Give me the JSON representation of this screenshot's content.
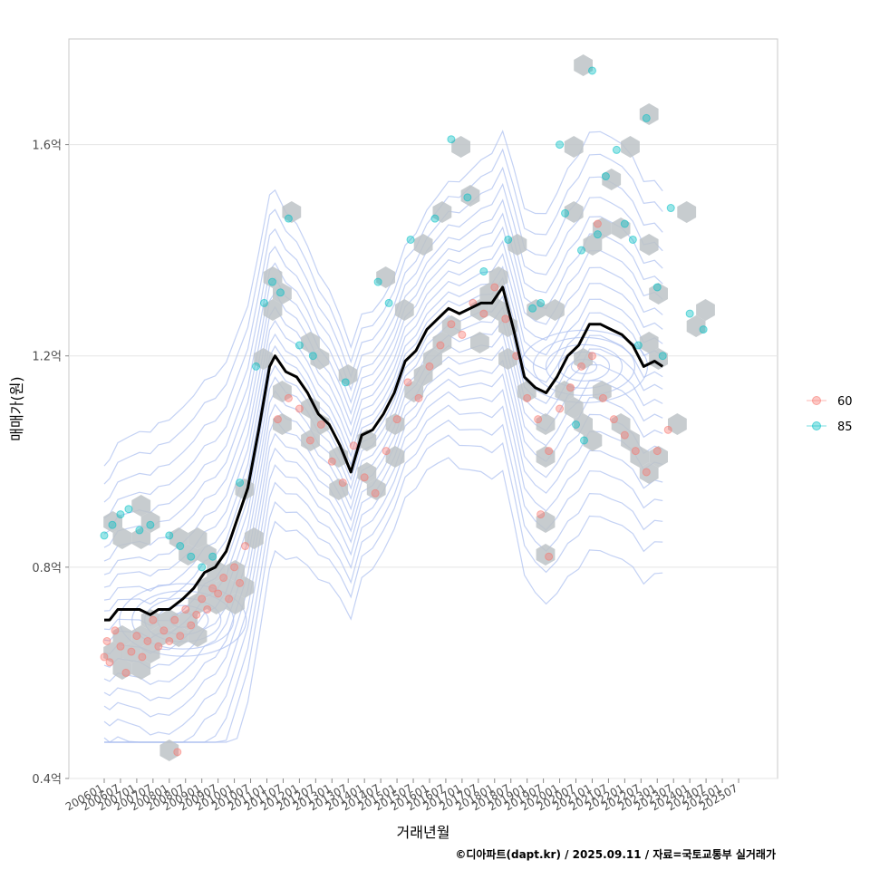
{
  "chart_data": {
    "type": "scatter",
    "xlabel": "거래년월",
    "ylabel": "매매가(원)",
    "caption": "©디아파트(dapt.kr) / 2025.09.11 / 자료=국토교통부 실거래가",
    "x_range": [
      "2006-01",
      "2025-07"
    ],
    "ylim": [
      0.4,
      1.8
    ],
    "y_unit": "억",
    "y_ticks": [
      "0.4억",
      "0.8억",
      "1.2억",
      "1.6억"
    ],
    "x_ticks": [
      "200601",
      "200607",
      "200701",
      "200707",
      "200801",
      "200807",
      "200901",
      "200907",
      "201001",
      "201007",
      "201101",
      "201107",
      "201201",
      "201207",
      "201301",
      "201307",
      "201401",
      "201407",
      "201501",
      "201507",
      "201601",
      "201607",
      "201701",
      "201707",
      "201801",
      "201807",
      "201901",
      "201907",
      "202001",
      "202007",
      "202101",
      "202107",
      "202201",
      "202207",
      "202301",
      "202307",
      "202401",
      "202407",
      "202501",
      "202507"
    ],
    "grid": true,
    "legend_position": "right",
    "colors": {
      "60": "#F8766D",
      "85": "#00BFC4",
      "trend": "#000000",
      "hex": "#bdc3c7",
      "contour": "#a9bdf0"
    },
    "legend": [
      {
        "label": "60",
        "color": "#F8766D"
      },
      {
        "label": "85",
        "color": "#00BFC4"
      }
    ],
    "trend": {
      "name": "moving average",
      "points": [
        [
          "2006-01",
          0.7
        ],
        [
          "2006-03",
          0.7
        ],
        [
          "2006-06",
          0.72
        ],
        [
          "2006-10",
          0.72
        ],
        [
          "2007-02",
          0.72
        ],
        [
          "2007-06",
          0.71
        ],
        [
          "2007-09",
          0.72
        ],
        [
          "2008-01",
          0.72
        ],
        [
          "2008-06",
          0.74
        ],
        [
          "2008-10",
          0.76
        ],
        [
          "2009-02",
          0.79
        ],
        [
          "2009-06",
          0.8
        ],
        [
          "2009-10",
          0.83
        ],
        [
          "2010-02",
          0.89
        ],
        [
          "2010-06",
          0.95
        ],
        [
          "2010-10",
          1.06
        ],
        [
          "2011-02",
          1.18
        ],
        [
          "2011-04",
          1.2
        ],
        [
          "2011-08",
          1.17
        ],
        [
          "2011-12",
          1.16
        ],
        [
          "2012-04",
          1.13
        ],
        [
          "2012-08",
          1.09
        ],
        [
          "2012-12",
          1.07
        ],
        [
          "2013-04",
          1.03
        ],
        [
          "2013-08",
          0.98
        ],
        [
          "2013-12",
          1.05
        ],
        [
          "2014-04",
          1.06
        ],
        [
          "2014-08",
          1.09
        ],
        [
          "2014-12",
          1.13
        ],
        [
          "2015-04",
          1.19
        ],
        [
          "2015-08",
          1.21
        ],
        [
          "2015-12",
          1.25
        ],
        [
          "2016-04",
          1.27
        ],
        [
          "2016-08",
          1.29
        ],
        [
          "2016-12",
          1.28
        ],
        [
          "2017-04",
          1.29
        ],
        [
          "2017-08",
          1.3
        ],
        [
          "2017-12",
          1.3
        ],
        [
          "2018-04",
          1.33
        ],
        [
          "2018-08",
          1.25
        ],
        [
          "2018-12",
          1.16
        ],
        [
          "2019-04",
          1.14
        ],
        [
          "2019-08",
          1.13
        ],
        [
          "2019-12",
          1.16
        ],
        [
          "2020-04",
          1.2
        ],
        [
          "2020-08",
          1.22
        ],
        [
          "2020-12",
          1.26
        ],
        [
          "2021-04",
          1.26
        ],
        [
          "2021-08",
          1.25
        ],
        [
          "2021-12",
          1.24
        ],
        [
          "2022-04",
          1.22
        ],
        [
          "2022-08",
          1.18
        ],
        [
          "2022-12",
          1.19
        ],
        [
          "2023-03",
          1.18
        ]
      ]
    },
    "series": [
      {
        "name": "60",
        "points": [
          [
            "2006-01",
            0.63
          ],
          [
            "2006-02",
            0.66
          ],
          [
            "2006-03",
            0.62
          ],
          [
            "2006-05",
            0.68
          ],
          [
            "2006-07",
            0.65
          ],
          [
            "2006-09",
            0.6
          ],
          [
            "2006-11",
            0.64
          ],
          [
            "2007-01",
            0.67
          ],
          [
            "2007-03",
            0.63
          ],
          [
            "2007-05",
            0.66
          ],
          [
            "2007-07",
            0.7
          ],
          [
            "2007-09",
            0.65
          ],
          [
            "2007-11",
            0.68
          ],
          [
            "2008-01",
            0.66
          ],
          [
            "2008-03",
            0.7
          ],
          [
            "2008-05",
            0.67
          ],
          [
            "2008-07",
            0.72
          ],
          [
            "2008-09",
            0.69
          ],
          [
            "2008-11",
            0.71
          ],
          [
            "2009-01",
            0.74
          ],
          [
            "2009-03",
            0.72
          ],
          [
            "2009-05",
            0.76
          ],
          [
            "2009-07",
            0.75
          ],
          [
            "2009-09",
            0.78
          ],
          [
            "2009-11",
            0.74
          ],
          [
            "2010-01",
            0.8
          ],
          [
            "2010-03",
            0.77
          ],
          [
            "2010-05",
            0.84
          ],
          [
            "2008-04",
            0.45
          ],
          [
            "2011-05",
            1.08
          ],
          [
            "2011-09",
            1.12
          ],
          [
            "2012-01",
            1.1
          ],
          [
            "2012-05",
            1.04
          ],
          [
            "2012-09",
            1.07
          ],
          [
            "2013-01",
            1.0
          ],
          [
            "2013-05",
            0.96
          ],
          [
            "2013-09",
            1.03
          ],
          [
            "2014-01",
            0.97
          ],
          [
            "2014-05",
            0.94
          ],
          [
            "2014-09",
            1.02
          ],
          [
            "2015-01",
            1.08
          ],
          [
            "2015-05",
            1.15
          ],
          [
            "2015-09",
            1.12
          ],
          [
            "2016-01",
            1.18
          ],
          [
            "2016-05",
            1.22
          ],
          [
            "2016-09",
            1.26
          ],
          [
            "2017-01",
            1.24
          ],
          [
            "2017-05",
            1.3
          ],
          [
            "2017-09",
            1.28
          ],
          [
            "2018-01",
            1.33
          ],
          [
            "2018-05",
            1.27
          ],
          [
            "2018-09",
            1.2
          ],
          [
            "2019-01",
            1.12
          ],
          [
            "2019-05",
            1.08
          ],
          [
            "2019-09",
            1.02
          ],
          [
            "2020-01",
            1.1
          ],
          [
            "2020-05",
            1.14
          ],
          [
            "2020-09",
            1.18
          ],
          [
            "2021-01",
            1.2
          ],
          [
            "2021-05",
            1.12
          ],
          [
            "2021-09",
            1.08
          ],
          [
            "2022-01",
            1.05
          ],
          [
            "2022-05",
            1.02
          ],
          [
            "2022-09",
            0.98
          ],
          [
            "2023-01",
            1.02
          ],
          [
            "2023-05",
            1.06
          ],
          [
            "2019-09",
            0.82
          ],
          [
            "2019-06",
            0.9
          ],
          [
            "2021-03",
            1.45
          ]
        ]
      },
      {
        "name": "85",
        "points": [
          [
            "2006-01",
            0.86
          ],
          [
            "2006-04",
            0.88
          ],
          [
            "2006-07",
            0.9
          ],
          [
            "2006-10",
            0.91
          ],
          [
            "2007-02",
            0.87
          ],
          [
            "2007-06",
            0.88
          ],
          [
            "2008-01",
            0.86
          ],
          [
            "2008-05",
            0.84
          ],
          [
            "2008-09",
            0.82
          ],
          [
            "2009-01",
            0.8
          ],
          [
            "2009-05",
            0.82
          ],
          [
            "2010-03",
            0.96
          ],
          [
            "2010-09",
            1.18
          ],
          [
            "2010-12",
            1.3
          ],
          [
            "2011-03",
            1.34
          ],
          [
            "2011-06",
            1.32
          ],
          [
            "2011-09",
            1.46
          ],
          [
            "2012-01",
            1.22
          ],
          [
            "2012-06",
            1.2
          ],
          [
            "2013-06",
            1.15
          ],
          [
            "2014-06",
            1.34
          ],
          [
            "2014-10",
            1.3
          ],
          [
            "2015-06",
            1.42
          ],
          [
            "2016-03",
            1.46
          ],
          [
            "2016-09",
            1.61
          ],
          [
            "2017-03",
            1.5
          ],
          [
            "2017-09",
            1.36
          ],
          [
            "2018-06",
            1.42
          ],
          [
            "2019-06",
            1.3
          ],
          [
            "2020-01",
            1.6
          ],
          [
            "2020-03",
            1.47
          ],
          [
            "2020-09",
            1.4
          ],
          [
            "2021-03",
            1.43
          ],
          [
            "2021-06",
            1.54
          ],
          [
            "2021-10",
            1.59
          ],
          [
            "2022-01",
            1.45
          ],
          [
            "2022-04",
            1.42
          ],
          [
            "2022-09",
            1.65
          ],
          [
            "2023-01",
            1.33
          ],
          [
            "2023-06",
            1.48
          ],
          [
            "2024-01",
            1.28
          ],
          [
            "2024-06",
            1.25
          ],
          [
            "2021-01",
            1.74
          ],
          [
            "2020-07",
            1.07
          ],
          [
            "2020-10",
            1.04
          ],
          [
            "2022-06",
            1.22
          ],
          [
            "2023-03",
            1.2
          ],
          [
            "2019-03",
            1.29
          ]
        ]
      }
    ]
  }
}
